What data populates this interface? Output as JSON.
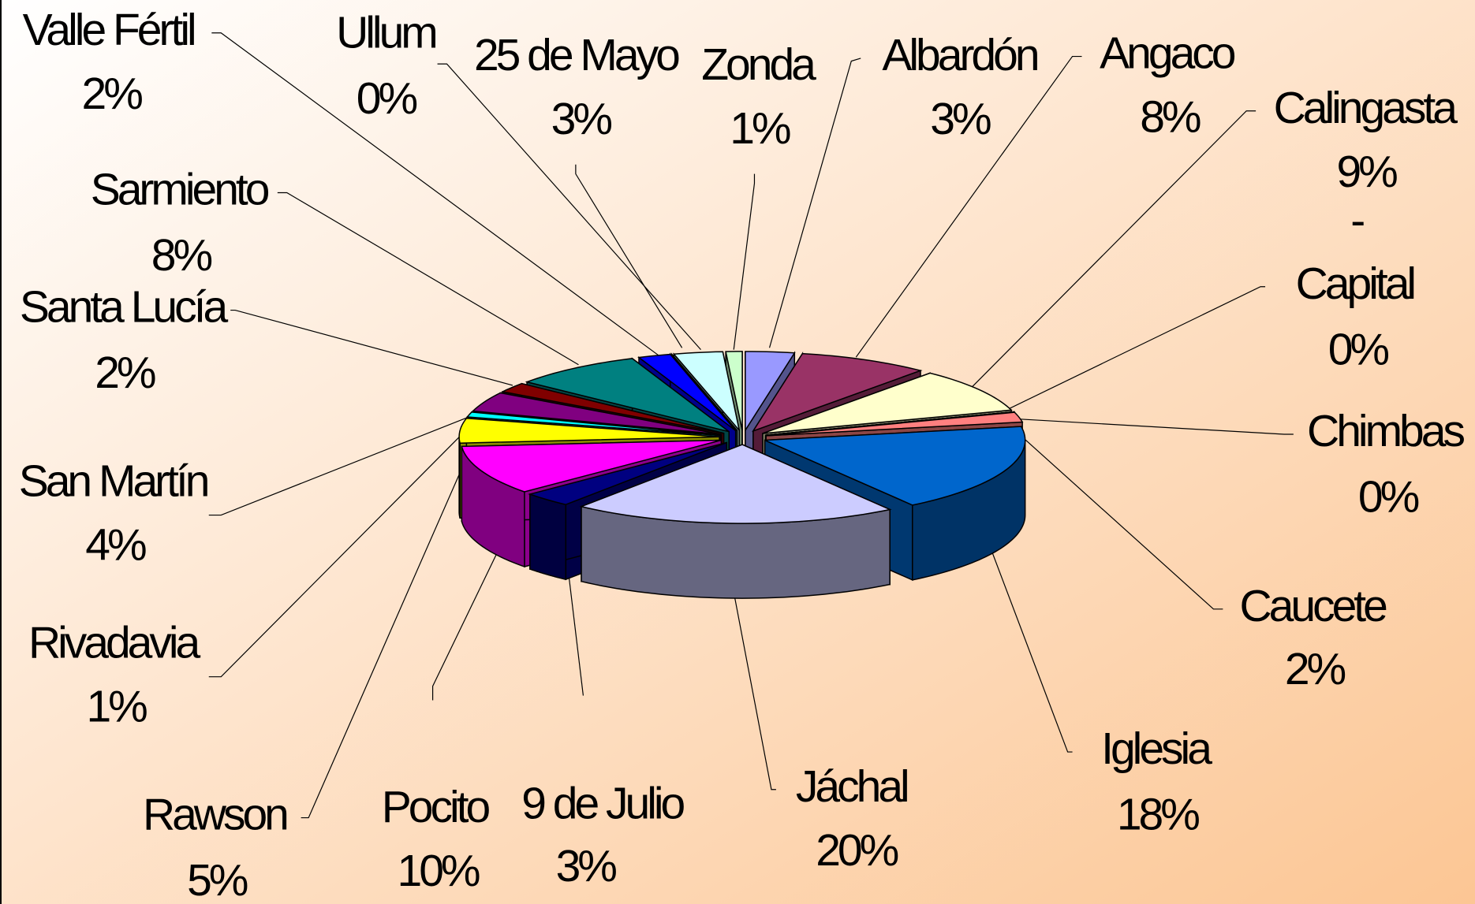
{
  "chart_data": {
    "type": "pie3d",
    "categories": [
      "Albardón",
      "Angaco",
      "Calingasta",
      "Capital",
      "Chimbas",
      "Caucete",
      "Iglesia",
      "Jáchal",
      "9 de Julio",
      "Pocito",
      "Rawson",
      "Rivadavia",
      "San Martín",
      "Santa Lucía",
      "Sarmiento",
      "Valle Fértil",
      "Ullum",
      "25 de Mayo",
      "Zonda"
    ],
    "values": [
      3,
      8,
      9,
      0,
      0,
      2,
      18,
      20,
      3,
      10,
      5,
      1,
      4,
      2,
      8,
      2,
      0,
      3,
      1
    ],
    "value_labels": [
      "3%",
      "8%",
      "9%",
      "0%",
      "0%",
      "2%",
      "18%",
      "20%",
      "3%",
      "10%",
      "5%",
      "1%",
      "4%",
      "2%",
      "8%",
      "2%",
      "0%",
      "3%",
      "1%"
    ],
    "colors": [
      "#9999ff",
      "#993366",
      "#ffffcc",
      "#ccffff",
      "#660066",
      "#ff8080",
      "#0066cc",
      "#ccccff",
      "#000080",
      "#ff00ff",
      "#ffff00",
      "#00ffff",
      "#800080",
      "#800000",
      "#008080",
      "#0000ff",
      "#00ccff",
      "#ccffff",
      "#ccffcc"
    ],
    "annotations": [
      "-"
    ]
  }
}
